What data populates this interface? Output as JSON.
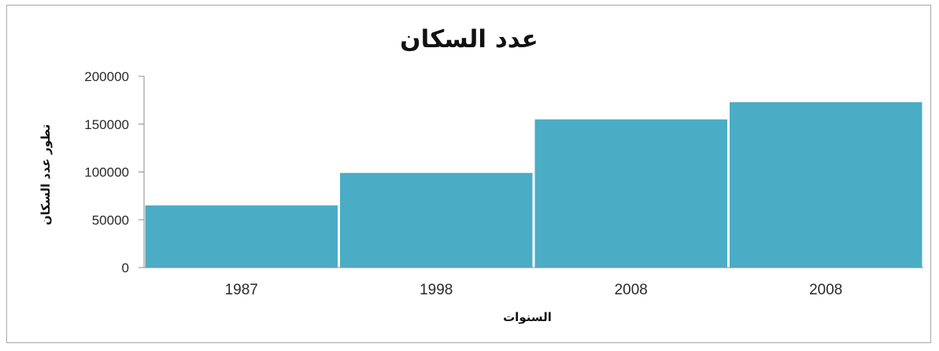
{
  "chart_data": {
    "type": "bar",
    "title": "عدد السكان",
    "xlabel": "السنوات",
    "ylabel": "تطور عدد السكان",
    "categories": [
      "1987",
      "1998",
      "2008",
      "2008"
    ],
    "values": [
      65000,
      99000,
      155000,
      173000
    ],
    "ylim": [
      0,
      200000
    ],
    "yticks": [
      "0",
      "50000",
      "100000",
      "150000",
      "200000"
    ],
    "ytick_values": [
      0,
      50000,
      100000,
      150000,
      200000
    ],
    "grid": false,
    "legend": "none",
    "colors": {
      "bar": "#4bacc6",
      "axis": "#8c8c8c",
      "frame": "#a8a8a8"
    }
  }
}
